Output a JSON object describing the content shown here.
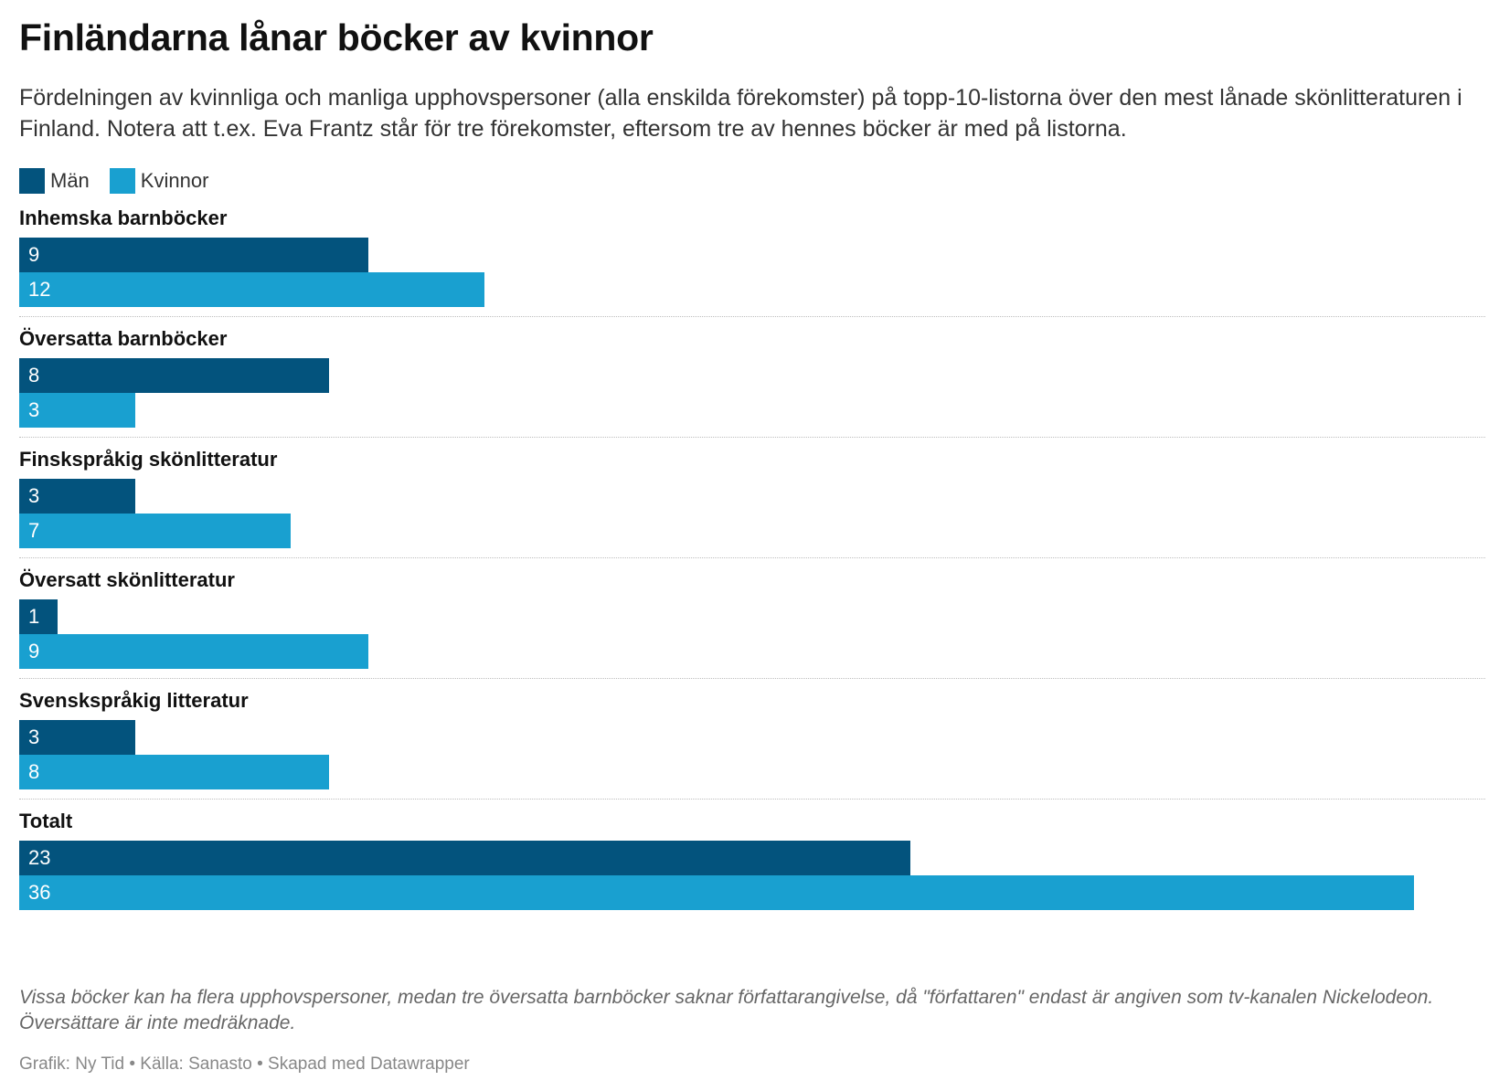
{
  "title": "Finländarna lånar böcker av kvinnor",
  "subtitle": "Fördelningen av kvinnliga och manliga upphovspersoner (alla enskilda förekomster) på topp-10-listorna över den mest lånade skönlitteraturen i Finland. Notera att t.ex. Eva Frantz står för tre förekomster, eftersom tre av hennes böcker är med på listorna.",
  "legend": [
    {
      "label": "Män",
      "color": "#03537d"
    },
    {
      "label": "Kvinnor",
      "color": "#19a0d0"
    }
  ],
  "notes": "Vissa böcker kan ha flera upphovspersoner, medan tre översatta barnböcker saknar författarangivelse, då \"författaren\" endast är angiven som tv-kanalen Nickelodeon. Översättare är inte medräknade.",
  "footer": "Grafik: Ny Tid • Källa: Sanasto • Skapad med Datawrapper",
  "chart_data": {
    "type": "bar",
    "orientation": "horizontal",
    "categories": [
      "Inhemska barnböcker",
      "Översatta barnböcker",
      "Finskspråkig skönlitteratur",
      "Översatt skönlitteratur",
      "Svenskspråkig litteratur",
      "Totalt"
    ],
    "series": [
      {
        "name": "Män",
        "color": "#03537d",
        "values": [
          9,
          8,
          3,
          1,
          3,
          23
        ]
      },
      {
        "name": "Kvinnor",
        "color": "#19a0d0",
        "values": [
          12,
          3,
          7,
          9,
          8,
          36
        ]
      }
    ],
    "xlim": [
      0,
      36
    ],
    "grid": false,
    "legend_position": "top-left"
  }
}
